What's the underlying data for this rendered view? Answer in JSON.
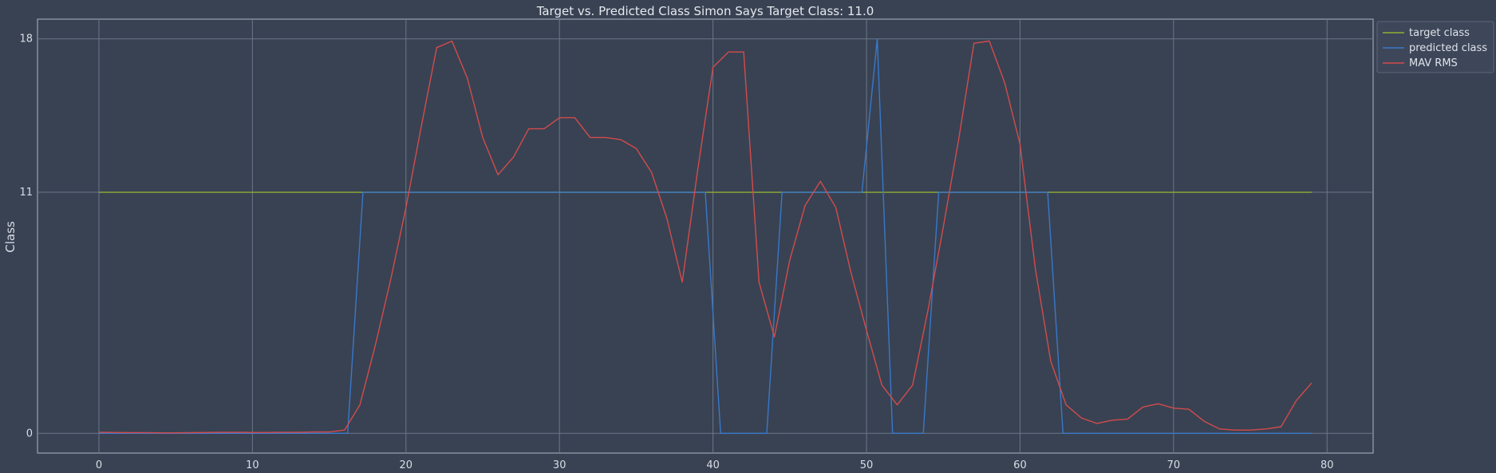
{
  "chart_data": {
    "type": "line",
    "title": "Target vs. Predicted Class Simon Says Target Class: 11.0",
    "xlabel": "",
    "ylabel": "Class",
    "xlim": [
      -4,
      83
    ],
    "ylim": [
      -0.9,
      18.9
    ],
    "xticks": [
      0,
      10,
      20,
      30,
      40,
      50,
      60,
      70,
      80
    ],
    "yticks": [
      0,
      11,
      18
    ],
    "grid": true,
    "legend_position": "outside-top-right",
    "colors": {
      "background": "#384253",
      "grid": "#6b7789",
      "spine": "#aeb7c4",
      "target": "#8fb032",
      "predicted": "#3a78c9",
      "mav": "#d44b4b"
    },
    "series": [
      {
        "name": "target class",
        "color": "#8fb032",
        "x": [
          0,
          79
        ],
        "y": [
          11,
          11
        ]
      },
      {
        "name": "predicted class",
        "color": "#3a78c9",
        "x": [
          0,
          16.2,
          17.2,
          39.5,
          40.5,
          43.5,
          44.5,
          49.7,
          50.7,
          51.7,
          53.7,
          54.7,
          61.8,
          62.8,
          79
        ],
        "y": [
          0,
          0,
          11,
          11,
          0,
          0,
          11,
          11,
          18,
          0,
          0,
          11,
          11,
          0,
          0
        ]
      },
      {
        "name": "MAV RMS",
        "color": "#d44b4b",
        "x": [
          0,
          1,
          2,
          3,
          4,
          5,
          6,
          7,
          8,
          9,
          10,
          11,
          12,
          13,
          14,
          15,
          16,
          17,
          18,
          19,
          20,
          21,
          22,
          23,
          24,
          25,
          26,
          27,
          28,
          29,
          30,
          31,
          32,
          33,
          34,
          35,
          36,
          37,
          38,
          39,
          40,
          41,
          42,
          43,
          44,
          45,
          46,
          47,
          48,
          49,
          50,
          51,
          52,
          53,
          54,
          55,
          56,
          57,
          58,
          59,
          60,
          61,
          62,
          63,
          64,
          65,
          66,
          67,
          68,
          69,
          70,
          71,
          72,
          73,
          74,
          75,
          76,
          77,
          78,
          79
        ],
        "y": [
          0.05,
          0.04,
          0.03,
          0.03,
          0.02,
          0.02,
          0.03,
          0.04,
          0.05,
          0.05,
          0.04,
          0.04,
          0.05,
          0.05,
          0.06,
          0.06,
          0.15,
          1.3,
          4.0,
          7.0,
          10.3,
          14.0,
          17.6,
          17.9,
          16.2,
          13.5,
          11.8,
          12.6,
          13.9,
          13.9,
          14.4,
          14.4,
          13.5,
          13.5,
          13.4,
          13.0,
          11.9,
          9.8,
          6.9,
          12.0,
          16.7,
          17.4,
          17.4,
          6.9,
          4.4,
          7.9,
          10.4,
          11.5,
          10.3,
          7.3,
          4.7,
          2.2,
          1.3,
          2.2,
          5.6,
          9.4,
          13.4,
          17.8,
          17.9,
          16.0,
          13.2,
          7.5,
          3.3,
          1.3,
          0.7,
          0.45,
          0.6,
          0.65,
          1.2,
          1.35,
          1.15,
          1.1,
          0.55,
          0.2,
          0.15,
          0.15,
          0.2,
          0.3,
          1.5,
          2.3
        ]
      }
    ]
  }
}
